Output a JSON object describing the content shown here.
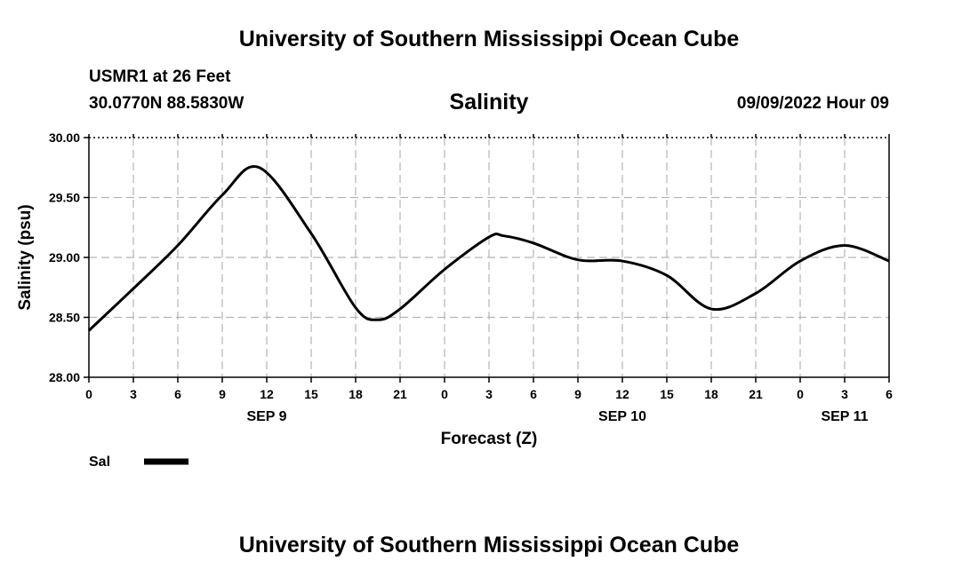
{
  "header": {
    "title_top": "University of Southern Mississippi Ocean Cube",
    "station": "USMR1 at 26 Feet",
    "coords": "30.0770N  88.5830W",
    "datetime": "09/09/2022 Hour 09"
  },
  "footer": {
    "title_bottom": "University of Southern Mississippi Ocean Cube"
  },
  "chart_data": {
    "type": "line",
    "title": "Salinity",
    "xlabel": "Forecast (Z)",
    "ylabel": "Salinity (psu)",
    "ylim": [
      28.0,
      30.0
    ],
    "xlim_hours": [
      0,
      54
    ],
    "y_ticks": [
      "28.00",
      "28.50",
      "29.00",
      "29.50",
      "30.00"
    ],
    "x_tick_labels": [
      "0",
      "3",
      "6",
      "9",
      "12",
      "15",
      "18",
      "21",
      "0",
      "3",
      "6",
      "9",
      "12",
      "15",
      "18",
      "21",
      "0",
      "3",
      "6"
    ],
    "date_labels": [
      {
        "label": "SEP 9",
        "hour": 12
      },
      {
        "label": "SEP 10",
        "hour": 36
      },
      {
        "label": "SEP 11",
        "hour": 51
      }
    ],
    "grid": true,
    "legend": {
      "position": "bottom-left"
    },
    "series": [
      {
        "name": "Sal",
        "color": "#000000",
        "x": [
          0,
          3,
          6,
          9,
          11.5,
          15,
          18,
          19.5,
          21,
          24,
          27,
          28,
          30,
          33,
          36,
          39,
          42,
          45,
          48,
          51,
          54
        ],
        "values": [
          28.39,
          28.74,
          29.1,
          29.52,
          29.75,
          29.2,
          28.58,
          28.48,
          28.57,
          28.9,
          29.17,
          29.18,
          29.12,
          28.98,
          28.97,
          28.85,
          28.57,
          28.7,
          28.97,
          29.1,
          28.97
        ]
      }
    ]
  },
  "colors": {
    "line": "#000000",
    "grid": "#b4b4b4",
    "background": "#ffffff"
  }
}
